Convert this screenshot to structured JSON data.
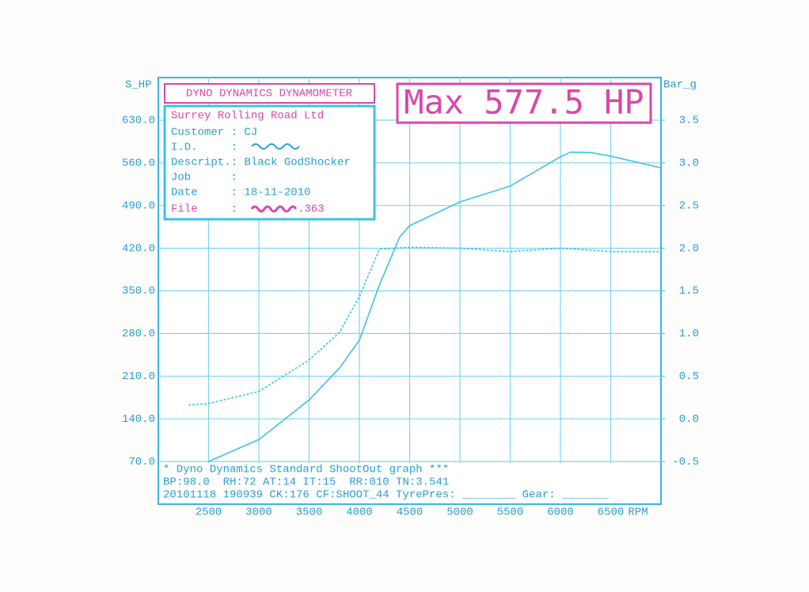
{
  "chart_data": {
    "type": "line",
    "header": "DYNO DYNAMICS DYNAMOMETER",
    "max_label": "Max 577.5 HP",
    "info": {
      "company": "Surrey Rolling Road Ltd",
      "rows": [
        "Customer : CJ",
        "I.D.     :",
        "Descript.: Black GodShocker",
        "Job      :",
        "Date     : 18-11-2010"
      ],
      "file_label": "File     :",
      "file_ext": ".363"
    },
    "footer": [
      "* Dyno Dynamics Standard ShootOut graph ***",
      "BP:98.0  RH:72 AT:14 IT:15  RR:010 TN:3.541",
      "20101118 190939 CK:176 CF:SHOOT_44 TyrePres: ________ Gear: _______"
    ],
    "y_label": "S_HP",
    "y2_label": "Bar_g",
    "x_label": "RPM",
    "xlim": [
      2000,
      7000
    ],
    "xticks": [
      2500,
      3000,
      3500,
      4000,
      4500,
      5000,
      5500,
      6000,
      6500
    ],
    "ylim": [
      0,
      700
    ],
    "yticks": [
      {
        "value": 70,
        "label": "70.0"
      },
      {
        "value": 140,
        "label": "140.0"
      },
      {
        "value": 210,
        "label": "210.0"
      },
      {
        "value": 280,
        "label": "280.0"
      },
      {
        "value": 350,
        "label": "350.0"
      },
      {
        "value": 420,
        "label": "420.0"
      },
      {
        "value": 490,
        "label": "490.0"
      },
      {
        "value": 560,
        "label": "560.0"
      },
      {
        "value": 630,
        "label": "630.0"
      }
    ],
    "y2lim": [
      -1,
      4
    ],
    "y2ticks": [
      -0.5,
      {
        "value": 0,
        "label": "0.0"
      },
      0.5,
      {
        "value": 1,
        "label": "1.0"
      },
      1.5,
      {
        "value": 2,
        "label": "2.0"
      },
      2.5,
      {
        "value": 3,
        "label": "3.0"
      },
      3.5
    ],
    "grid": true,
    "series": [
      {
        "color": "#3cc3e3",
        "dash": false,
        "x": [
          2500,
          3000,
          3500,
          3800,
          4000,
          4200,
          4400,
          4500,
          5000,
          5500,
          6000,
          6100,
          6300,
          6500,
          7000
        ],
        "values": [
          70,
          106,
          171,
          223,
          269,
          360,
          438,
          457,
          496,
          522,
          570,
          577.5,
          577,
          571,
          552
        ]
      },
      {
        "color": "#3cc3e3",
        "dash": true,
        "axis": "y2",
        "x": [
          2300,
          2500,
          3000,
          3500,
          3800,
          4000,
          4100,
          4200,
          4500,
          5000,
          5500,
          6000,
          6500,
          7000
        ],
        "values": [
          0.16,
          0.18,
          0.32,
          0.69,
          1.01,
          1.43,
          1.71,
          1.99,
          2.01,
          2.0,
          1.96,
          2.0,
          1.96,
          1.96
        ]
      }
    ]
  }
}
